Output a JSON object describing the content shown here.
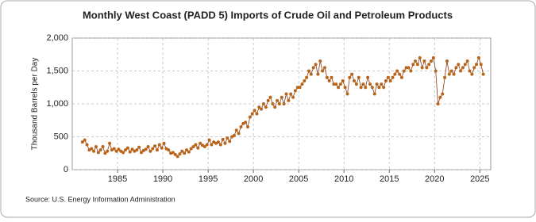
{
  "chart_data": {
    "type": "line",
    "title": "Monthly West Coast (PADD 5) Imports of Crude Oil and Petroleum Products",
    "y_label": "Thousand Barrels per Day",
    "source": "Source: U.S. Energy Information Administration",
    "x": [
      1981.125,
      1981.375,
      1981.625,
      1981.875,
      1982.125,
      1982.375,
      1982.625,
      1982.875,
      1983.125,
      1983.375,
      1983.625,
      1983.875,
      1984.125,
      1984.375,
      1984.625,
      1984.875,
      1985.125,
      1985.375,
      1985.625,
      1985.875,
      1986.125,
      1986.375,
      1986.625,
      1986.875,
      1987.125,
      1987.375,
      1987.625,
      1987.875,
      1988.125,
      1988.375,
      1988.625,
      1988.875,
      1989.125,
      1989.375,
      1989.625,
      1989.875,
      1990.125,
      1990.375,
      1990.625,
      1990.875,
      1991.125,
      1991.375,
      1991.625,
      1991.875,
      1992.125,
      1992.375,
      1992.625,
      1992.875,
      1993.125,
      1993.375,
      1993.625,
      1993.875,
      1994.125,
      1994.375,
      1994.625,
      1994.875,
      1995.125,
      1995.375,
      1995.625,
      1995.875,
      1996.125,
      1996.375,
      1996.625,
      1996.875,
      1997.125,
      1997.375,
      1997.625,
      1997.875,
      1998.125,
      1998.375,
      1998.625,
      1998.875,
      1999.125,
      1999.375,
      1999.625,
      1999.875,
      2000.125,
      2000.375,
      2000.625,
      2000.875,
      2001.125,
      2001.375,
      2001.625,
      2001.875,
      2002.125,
      2002.375,
      2002.625,
      2002.875,
      2003.125,
      2003.375,
      2003.625,
      2003.875,
      2004.125,
      2004.375,
      2004.625,
      2004.875,
      2005.125,
      2005.375,
      2005.625,
      2005.875,
      2006.125,
      2006.375,
      2006.625,
      2006.875,
      2007.125,
      2007.375,
      2007.625,
      2007.875,
      2008.125,
      2008.375,
      2008.625,
      2008.875,
      2009.125,
      2009.375,
      2009.625,
      2009.875,
      2010.125,
      2010.375,
      2010.625,
      2010.875,
      2011.125,
      2011.375,
      2011.625,
      2011.875,
      2012.125,
      2012.375,
      2012.625,
      2012.875,
      2013.125,
      2013.375,
      2013.625,
      2013.875,
      2014.125,
      2014.375,
      2014.625,
      2014.875,
      2015.125,
      2015.375,
      2015.625,
      2015.875,
      2016.125,
      2016.375,
      2016.625,
      2016.875,
      2017.125,
      2017.375,
      2017.625,
      2017.875,
      2018.125,
      2018.375,
      2018.625,
      2018.875,
      2019.125,
      2019.375,
      2019.625,
      2019.875,
      2020.125,
      2020.375,
      2020.625,
      2020.875,
      2021.125,
      2021.375,
      2021.625,
      2021.875,
      2022.125,
      2022.375,
      2022.625,
      2022.875,
      2023.125,
      2023.375,
      2023.625,
      2023.875,
      2024.125,
      2024.375,
      2024.625,
      2024.875,
      2025.125,
      2025.375
    ],
    "series": [
      {
        "color": "#b8651b",
        "values": [
          420,
          450,
          380,
          300,
          320,
          280,
          350,
          260,
          300,
          350,
          250,
          280,
          400,
          300,
          320,
          280,
          310,
          280,
          260,
          300,
          330,
          270,
          310,
          280,
          300,
          340,
          260,
          290,
          310,
          350,
          280,
          320,
          360,
          300,
          380,
          330,
          400,
          320,
          300,
          250,
          260,
          230,
          200,
          240,
          280,
          250,
          300,
          270,
          320,
          350,
          380,
          330,
          400,
          370,
          350,
          380,
          450,
          380,
          420,
          400,
          420,
          380,
          460,
          400,
          480,
          430,
          500,
          520,
          600,
          550,
          650,
          700,
          720,
          650,
          800,
          850,
          900,
          850,
          950,
          920,
          1000,
          950,
          1050,
          1100,
          1000,
          950,
          1050,
          1000,
          1100,
          1000,
          1150,
          1050,
          1150,
          1100,
          1200,
          1250,
          1250,
          1300,
          1350,
          1400,
          1500,
          1450,
          1550,
          1600,
          1450,
          1650,
          1500,
          1550,
          1400,
          1350,
          1400,
          1300,
          1300,
          1250,
          1300,
          1350,
          1250,
          1150,
          1400,
          1450,
          1350,
          1300,
          1400,
          1250,
          1300,
          1250,
          1400,
          1300,
          1250,
          1150,
          1300,
          1250,
          1300,
          1250,
          1350,
          1400,
          1350,
          1400,
          1450,
          1500,
          1450,
          1400,
          1500,
          1550,
          1550,
          1500,
          1600,
          1650,
          1600,
          1700,
          1550,
          1650,
          1550,
          1600,
          1650,
          1700,
          1500,
          1000,
          1100,
          1150,
          1400,
          1650,
          1450,
          1500,
          1450,
          1550,
          1600,
          1500,
          1550,
          1600,
          1650,
          1500,
          1450,
          1550,
          1600,
          1700,
          1600,
          1450
        ]
      }
    ],
    "xlim": [
      1980,
      2026.2
    ],
    "ylim": [
      0,
      2000
    ],
    "xticks": [
      1985,
      1990,
      1995,
      2000,
      2005,
      2010,
      2015,
      2020,
      2025
    ],
    "yticks": [
      0,
      500,
      {
        "value": 1000,
        "label": "1,000"
      },
      {
        "value": 1500,
        "label": "1,500"
      },
      {
        "value": 2000,
        "label": "2,000"
      }
    ],
    "grid": true
  }
}
